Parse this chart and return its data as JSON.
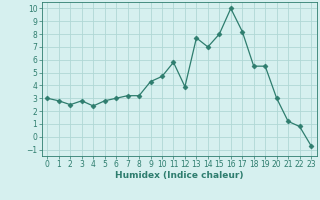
{
  "x": [
    0,
    1,
    2,
    3,
    4,
    5,
    6,
    7,
    8,
    9,
    10,
    11,
    12,
    13,
    14,
    15,
    16,
    17,
    18,
    19,
    20,
    21,
    22,
    23
  ],
  "y": [
    3.0,
    2.8,
    2.5,
    2.8,
    2.4,
    2.8,
    3.0,
    3.2,
    3.2,
    4.3,
    4.7,
    5.8,
    3.9,
    7.7,
    7.0,
    8.0,
    10.0,
    8.2,
    5.5,
    5.5,
    3.0,
    1.2,
    0.8,
    -0.7
  ],
  "line_color": "#2e7d6e",
  "marker": "D",
  "marker_size": 2.5,
  "bg_color": "#d6f0ef",
  "grid_color": "#b0d8d5",
  "xlabel": "Humidex (Indice chaleur)",
  "xlim": [
    -0.5,
    23.5
  ],
  "ylim": [
    -1.5,
    10.5
  ],
  "yticks": [
    -1,
    0,
    1,
    2,
    3,
    4,
    5,
    6,
    7,
    8,
    9,
    10
  ],
  "xticks": [
    0,
    1,
    2,
    3,
    4,
    5,
    6,
    7,
    8,
    9,
    10,
    11,
    12,
    13,
    14,
    15,
    16,
    17,
    18,
    19,
    20,
    21,
    22,
    23
  ]
}
